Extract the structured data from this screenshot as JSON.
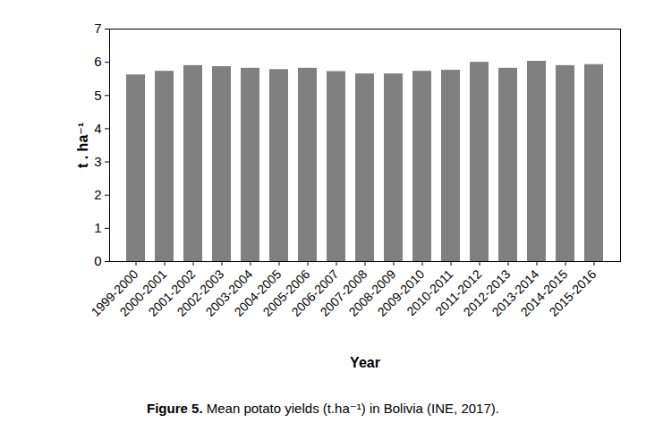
{
  "chart_data": {
    "type": "bar",
    "title": "Figure 5. Mean potato yields (t.ha⁻¹) in Bolivia (INE, 2017).",
    "x_label": "Year",
    "y_label": "t . ha⁻¹",
    "categories": [
      "1999-2000",
      "2000-2001",
      "2001-2002",
      "2002-2003",
      "2003-2004",
      "2004-2005",
      "2005-2006",
      "2006-2007",
      "2007-2008",
      "2008-2009",
      "2009-2010",
      "2010-2011",
      "2011-2012",
      "2012-2013",
      "2013-2014",
      "2014-2015",
      "2015-2016"
    ],
    "values": [
      5.62,
      5.73,
      5.9,
      5.87,
      5.82,
      5.78,
      5.82,
      5.72,
      5.65,
      5.65,
      5.73,
      5.76,
      6.0,
      5.82,
      6.03,
      5.9,
      5.93
    ],
    "color": "#808080",
    "ylim": [
      0,
      7
    ],
    "yticks": [
      0,
      1,
      2,
      3,
      4,
      5,
      6,
      7
    ],
    "grid": false
  }
}
